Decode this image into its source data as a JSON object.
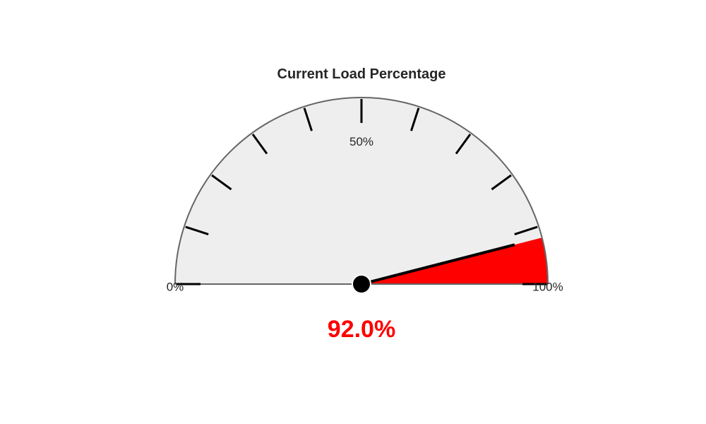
{
  "chart_data": {
    "type": "gauge",
    "title": "Current Load Percentage",
    "value": 92.0,
    "value_text": "92.0%",
    "min": 0,
    "max": 100,
    "ticks": [
      0,
      10,
      20,
      30,
      40,
      50,
      60,
      70,
      80,
      90,
      100
    ],
    "tick_labels": [
      {
        "value": 0,
        "text": "0%"
      },
      {
        "value": 50,
        "text": "50%"
      },
      {
        "value": 100,
        "text": "100%"
      }
    ],
    "colors": {
      "fill": "#ff0000",
      "track": "#eeeeee",
      "outline": "#666666",
      "needle": "#000000",
      "value_text": "#ff0000",
      "title": "#262626"
    }
  }
}
